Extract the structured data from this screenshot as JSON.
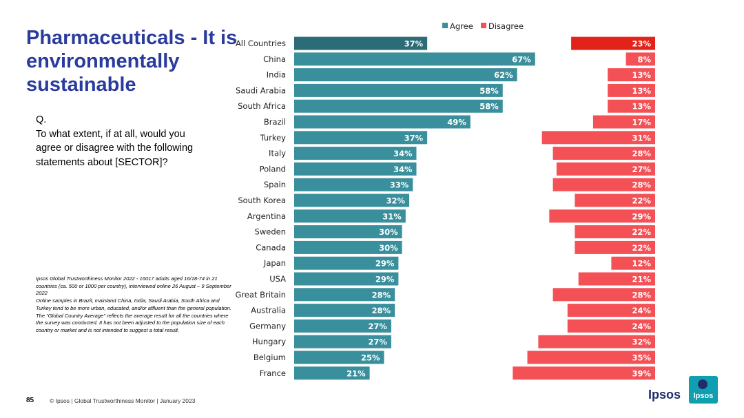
{
  "slide": {
    "title": "Pharmaceuticals - It is environmentally sustainable",
    "question_label": "Q.",
    "question_text": "To what extent, if at all, would you agree or disagree with the following statements about [SECTOR]?",
    "notes": [
      "Ipsos Global Trustworthiness Monitor 2022 - 16017 adults aged 16/18-74 in 21 countries (ca. 500 or 1000 per country), interviewed online 26 August – 9 September 2022",
      "Online samples in Brazil, mainland China, India, Saudi Arabia, South Africa and Turkey tend to be more urban, educated, and/or affluent than the general population.",
      "The “Global Country Average” reflects the average result for all the countries where the survey was conducted. It has not been adjusted to the population size of each country or market and is not intended to suggest a total result."
    ],
    "page_number": "85",
    "footer": "© Ipsos | Global Trustworthiness Monitor | January 2023",
    "brand": "Ipsos",
    "logo_text": "Ipsos"
  },
  "chart_data": {
    "type": "bar",
    "orientation": "horizontal",
    "categories": [
      "All Countries",
      "China",
      "India",
      "Saudi Arabia",
      "South Africa",
      "Brazil",
      "Turkey",
      "Italy",
      "Poland",
      "Spain",
      "South Korea",
      "Argentina",
      "Sweden",
      "Canada",
      "Japan",
      "USA",
      "Great Britain",
      "Australia",
      "Germany",
      "Hungary",
      "Belgium",
      "France"
    ],
    "series": [
      {
        "name": "Agree",
        "color": "#3a8f9c",
        "highlight_color": "#2b6c76",
        "values": [
          37,
          67,
          62,
          58,
          58,
          49,
          37,
          34,
          34,
          33,
          32,
          31,
          30,
          30,
          29,
          29,
          28,
          28,
          27,
          27,
          25,
          21
        ]
      },
      {
        "name": "Disagree",
        "color": "#f45157",
        "highlight_color": "#e2231a",
        "values": [
          23,
          8,
          13,
          13,
          13,
          17,
          31,
          28,
          27,
          28,
          22,
          29,
          22,
          22,
          12,
          21,
          28,
          24,
          24,
          32,
          35,
          39
        ]
      }
    ],
    "value_suffix": "%",
    "legend_position": "top",
    "highlight_category": "All Countries"
  }
}
